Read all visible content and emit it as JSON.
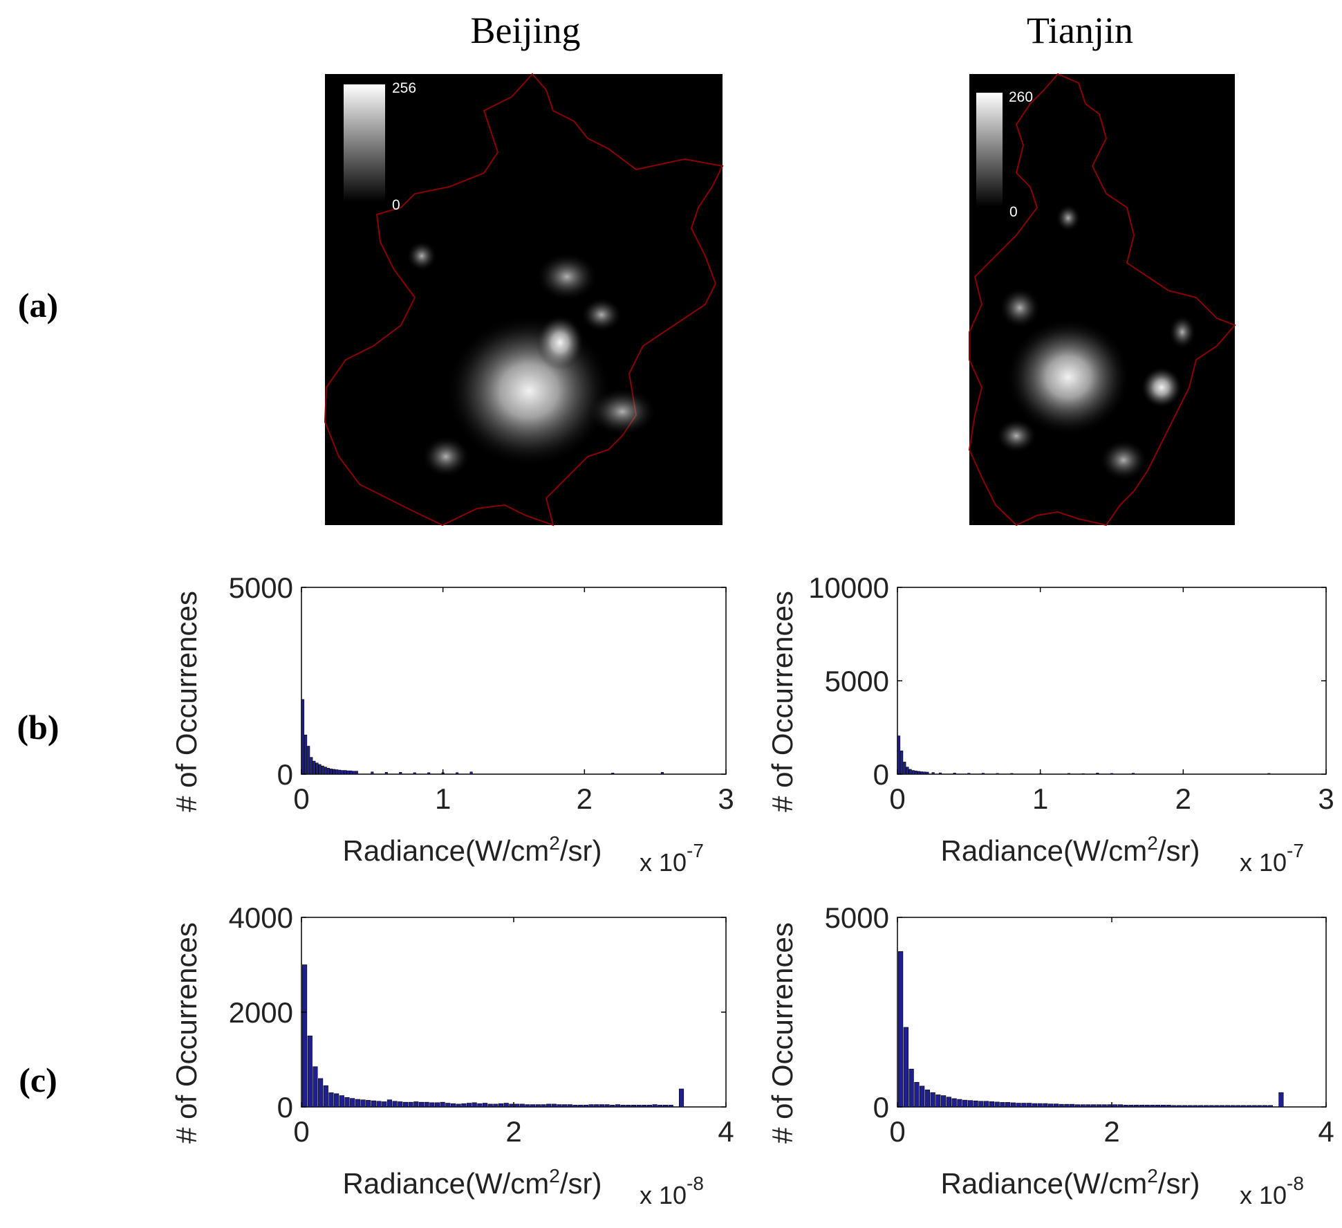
{
  "figure": {
    "columns": [
      "Beijing",
      "Tianjin"
    ],
    "row_labels": [
      "(a)",
      "(b)",
      "(c)"
    ],
    "maps": [
      {
        "city": "Beijing",
        "colorbar_max": "256",
        "colorbar_min": "0",
        "border_color": "#8b0000",
        "background": "#000000"
      },
      {
        "city": "Tianjin",
        "colorbar_max": "260",
        "colorbar_min": "0",
        "border_color": "#8b0000",
        "background": "#000000"
      }
    ],
    "bar_color": "#1f1f8f"
  },
  "chart_data": [
    {
      "type": "bar",
      "panel": "(b)",
      "column": "Beijing",
      "ylabel": "# of Occurrences",
      "xlabel": "Radiance(W/cm²/sr)",
      "xlabel_main": "Radiance(W/cm",
      "xlabel_sup": "2",
      "xlabel_tail": "/sr)",
      "exponent_label": "x 10",
      "exponent_sup": "-7",
      "xlim": [
        0,
        3
      ],
      "ylim": [
        0,
        5000
      ],
      "xticks": [
        "0",
        "1",
        "2",
        "3"
      ],
      "yticks": [
        "0",
        "5000"
      ],
      "bin_width": 0.02,
      "x": [
        0.01,
        0.03,
        0.05,
        0.07,
        0.09,
        0.11,
        0.13,
        0.15,
        0.17,
        0.19,
        0.21,
        0.23,
        0.25,
        0.27,
        0.29,
        0.31,
        0.33,
        0.35,
        0.37,
        0.39,
        0.5,
        0.6,
        0.7,
        0.8,
        0.9,
        1.0,
        1.1,
        1.2,
        2.2,
        2.55
      ],
      "values": [
        2000,
        1050,
        750,
        450,
        350,
        300,
        260,
        220,
        190,
        160,
        140,
        130,
        120,
        110,
        100,
        100,
        90,
        90,
        80,
        80,
        60,
        50,
        50,
        40,
        40,
        40,
        40,
        60,
        30,
        50
      ]
    },
    {
      "type": "bar",
      "panel": "(b)",
      "column": "Tianjin",
      "ylabel": "# of Occurrences",
      "xlabel": "Radiance(W/cm²/sr)",
      "xlabel_main": "Radiance(W/cm",
      "xlabel_sup": "2",
      "xlabel_tail": "/sr)",
      "exponent_label": "x 10",
      "exponent_sup": "-7",
      "xlim": [
        0,
        3
      ],
      "ylim": [
        0,
        10000
      ],
      "xticks": [
        "0",
        "1",
        "2",
        "3"
      ],
      "yticks": [
        "0",
        "5000",
        "10000"
      ],
      "bin_width": 0.02,
      "x": [
        0.01,
        0.03,
        0.05,
        0.07,
        0.09,
        0.11,
        0.13,
        0.15,
        0.17,
        0.19,
        0.21,
        0.25,
        0.3,
        0.4,
        0.5,
        0.6,
        0.7,
        0.8,
        1.0,
        1.2,
        1.3,
        1.4,
        1.5,
        1.65,
        2.6
      ],
      "values": [
        2050,
        1250,
        650,
        380,
        260,
        200,
        170,
        150,
        130,
        120,
        110,
        90,
        70,
        60,
        50,
        50,
        40,
        40,
        30,
        40,
        30,
        60,
        40,
        50,
        40
      ]
    },
    {
      "type": "bar",
      "panel": "(c)",
      "column": "Beijing",
      "ylabel": "# of Occurrences",
      "xlabel": "Radiance(W/cm²/sr)",
      "xlabel_main": "Radiance(W/cm",
      "xlabel_sup": "2",
      "xlabel_tail": "/sr)",
      "exponent_label": "x 10",
      "exponent_sup": "-8",
      "xlim": [
        0,
        4
      ],
      "ylim": [
        0,
        4000
      ],
      "xticks": [
        "0",
        "2",
        "4"
      ],
      "yticks": [
        "0",
        "2000",
        "4000"
      ],
      "bin_width": 0.05,
      "x": [
        0.03,
        0.08,
        0.13,
        0.18,
        0.23,
        0.28,
        0.33,
        0.38,
        0.43,
        0.48,
        0.53,
        0.58,
        0.63,
        0.68,
        0.73,
        0.78,
        0.83,
        0.88,
        0.93,
        0.98,
        1.03,
        1.08,
        1.13,
        1.18,
        1.23,
        1.28,
        1.33,
        1.38,
        1.43,
        1.48,
        1.53,
        1.58,
        1.63,
        1.68,
        1.73,
        1.78,
        1.83,
        1.88,
        1.93,
        1.98,
        2.03,
        2.08,
        2.13,
        2.18,
        2.23,
        2.28,
        2.33,
        2.38,
        2.43,
        2.48,
        2.53,
        2.58,
        2.63,
        2.68,
        2.73,
        2.78,
        2.83,
        2.88,
        2.93,
        2.98,
        3.03,
        3.08,
        3.13,
        3.18,
        3.23,
        3.28,
        3.33,
        3.38,
        3.43,
        3.48,
        3.58
      ],
      "values": [
        3000,
        1500,
        850,
        600,
        450,
        300,
        280,
        240,
        200,
        180,
        160,
        150,
        140,
        130,
        120,
        110,
        150,
        120,
        110,
        100,
        100,
        110,
        100,
        100,
        90,
        90,
        100,
        80,
        70,
        60,
        70,
        80,
        90,
        70,
        80,
        60,
        60,
        70,
        80,
        60,
        60,
        60,
        50,
        50,
        50,
        50,
        60,
        60,
        50,
        50,
        50,
        40,
        40,
        40,
        50,
        50,
        50,
        50,
        40,
        50,
        40,
        40,
        40,
        40,
        40,
        40,
        50,
        40,
        40,
        40,
        380
      ]
    },
    {
      "type": "bar",
      "panel": "(c)",
      "column": "Tianjin",
      "ylabel": "# of Occurrences",
      "xlabel": "Radiance(W/cm²/sr)",
      "xlabel_main": "Radiance(W/cm",
      "xlabel_sup": "2",
      "xlabel_tail": "/sr)",
      "exponent_label": "x 10",
      "exponent_sup": "-8",
      "xlim": [
        0,
        4
      ],
      "ylim": [
        0,
        5000
      ],
      "xticks": [
        "0",
        "2",
        "4"
      ],
      "yticks": [
        "0",
        "5000"
      ],
      "bin_width": 0.05,
      "x": [
        0.03,
        0.08,
        0.13,
        0.18,
        0.23,
        0.28,
        0.33,
        0.38,
        0.43,
        0.48,
        0.53,
        0.58,
        0.63,
        0.68,
        0.73,
        0.78,
        0.83,
        0.88,
        0.93,
        0.98,
        1.03,
        1.08,
        1.13,
        1.18,
        1.23,
        1.28,
        1.33,
        1.38,
        1.43,
        1.48,
        1.53,
        1.58,
        1.63,
        1.68,
        1.73,
        1.78,
        1.83,
        1.88,
        1.93,
        1.98,
        2.03,
        2.08,
        2.13,
        2.18,
        2.23,
        2.28,
        2.33,
        2.38,
        2.43,
        2.48,
        2.53,
        2.58,
        2.63,
        2.68,
        2.73,
        2.78,
        2.83,
        2.88,
        2.93,
        2.98,
        3.03,
        3.08,
        3.13,
        3.18,
        3.23,
        3.28,
        3.33,
        3.38,
        3.43,
        3.48,
        3.58
      ],
      "values": [
        4100,
        2100,
        1000,
        650,
        550,
        450,
        380,
        320,
        300,
        260,
        220,
        200,
        180,
        170,
        160,
        150,
        150,
        140,
        130,
        120,
        120,
        110,
        100,
        100,
        100,
        90,
        90,
        90,
        80,
        80,
        70,
        70,
        70,
        60,
        60,
        60,
        60,
        60,
        60,
        60,
        60,
        60,
        50,
        50,
        50,
        50,
        50,
        50,
        50,
        50,
        50,
        40,
        40,
        40,
        40,
        40,
        40,
        40,
        40,
        40,
        40,
        40,
        40,
        40,
        40,
        40,
        40,
        40,
        40,
        40,
        380
      ]
    }
  ]
}
